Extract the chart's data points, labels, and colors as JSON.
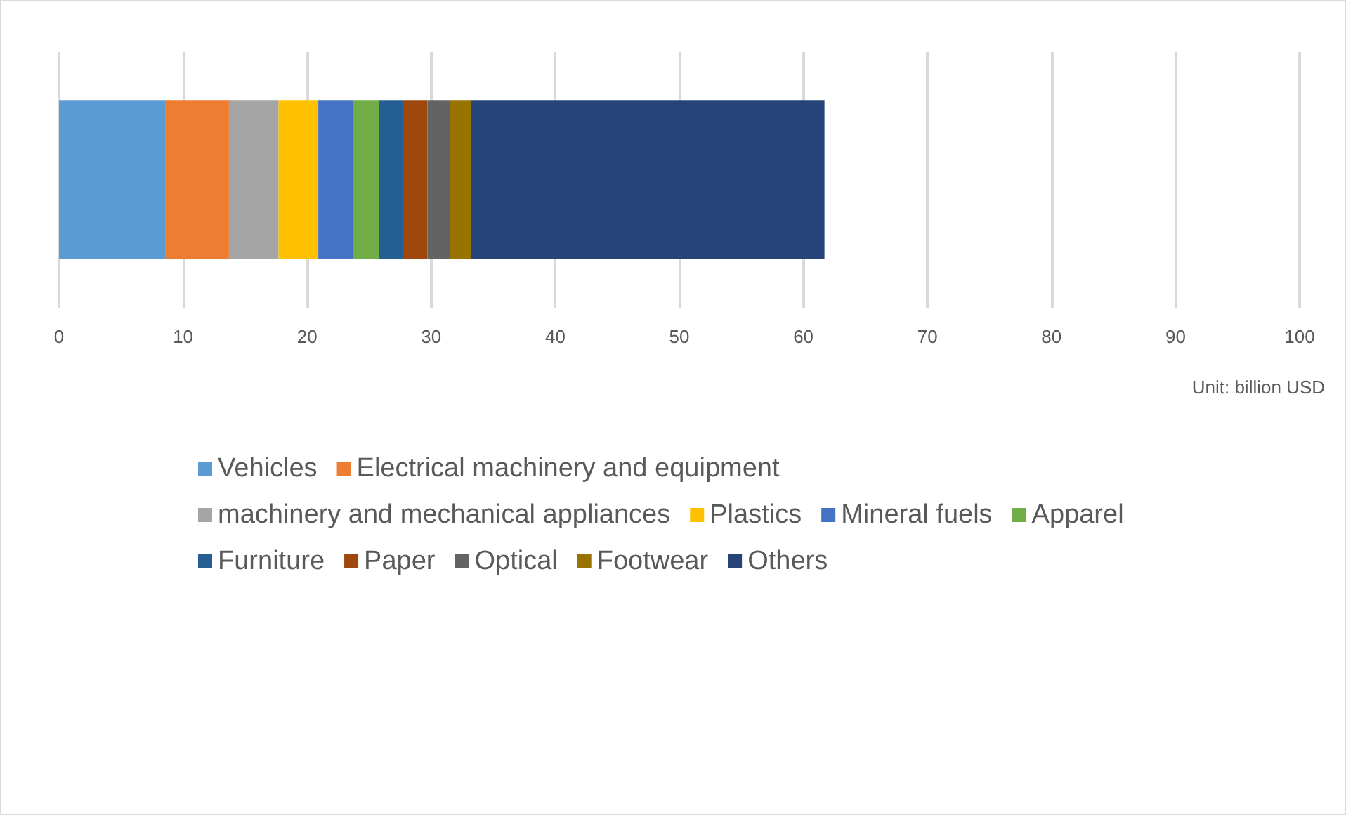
{
  "chart_data": {
    "type": "bar",
    "orientation": "horizontal",
    "stacked": true,
    "categories": [
      null
    ],
    "series": [
      {
        "name": "Vehicles",
        "color": "#5b9bd5",
        "values": [
          8.6
        ]
      },
      {
        "name": "Electrical machinery and equipment",
        "color": "#ed7d31",
        "values": [
          5.1
        ]
      },
      {
        "name": "machinery and mechanical appliances",
        "color": "#a5a5a5",
        "values": [
          4.0
        ]
      },
      {
        "name": "Plastics",
        "color": "#ffc000",
        "values": [
          3.2
        ]
      },
      {
        "name": "Mineral fuels",
        "color": "#4472c4",
        "values": [
          2.8
        ]
      },
      {
        "name": "Apparel",
        "color": "#70ad47",
        "values": [
          2.1
        ]
      },
      {
        "name": "Furniture",
        "color": "#255e91",
        "values": [
          1.9
        ]
      },
      {
        "name": "Paper",
        "color": "#9e480e",
        "values": [
          2.0
        ]
      },
      {
        "name": "Optical",
        "color": "#636363",
        "values": [
          1.8
        ]
      },
      {
        "name": "Footwear",
        "color": "#997300",
        "values": [
          1.7
        ]
      },
      {
        "name": "Others",
        "color": "#264478",
        "values": [
          28.5
        ]
      }
    ],
    "xlim": [
      0,
      100
    ],
    "xticks": [
      0,
      10,
      20,
      30,
      40,
      50,
      60,
      70,
      80,
      90,
      100
    ],
    "grid": "x",
    "legend": "bottom",
    "annotations": [
      "Unit: billion USD"
    ]
  }
}
